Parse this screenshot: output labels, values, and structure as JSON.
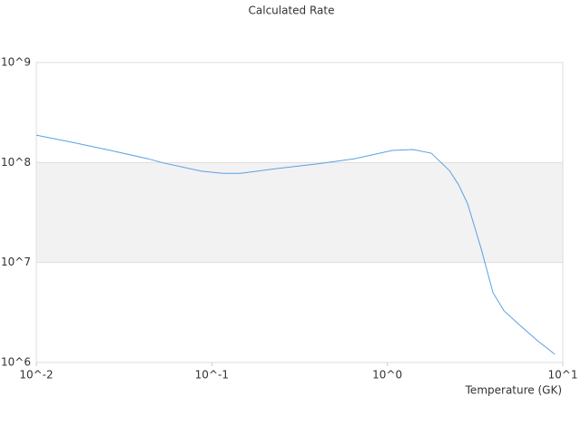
{
  "chart_data": {
    "type": "line",
    "title": "Calculated Rate",
    "x_label": "Temperature (GK)",
    "x": [
      0.01,
      0.0161,
      0.0265,
      0.0433,
      0.053,
      0.0874,
      0.115,
      0.146,
      0.235,
      0.402,
      0.647,
      1.067,
      1.4,
      1.78,
      2.26,
      2.55,
      2.87,
      3.43,
      4.0,
      4.62,
      5.86,
      7.18,
      9.0
    ],
    "series": [
      {
        "color": "#5aa0e6",
        "values": [
          188000000,
          159000000,
          132000000,
          109000000,
          99000000,
          82000000,
          78000000,
          78000000,
          87000000,
          97000000,
          109000000,
          132000000,
          135000000,
          124000000,
          83000000,
          59700000,
          38500000,
          13600000,
          4990000,
          3290000,
          2250000,
          1650000,
          1210000
        ]
      }
    ],
    "xlim": [
      0.01,
      10
    ],
    "ylim": [
      1000000,
      1000000000
    ],
    "xscale": "log",
    "yscale": "log",
    "xticks": [
      {
        "value": 0.01,
        "label": "10^-2"
      },
      {
        "value": 0.1,
        "label": "10^-1"
      },
      {
        "value": 1,
        "label": "10^0"
      },
      {
        "value": 10,
        "label": "10^1"
      }
    ],
    "yticks": [
      {
        "value": 1000000,
        "label": "10^6"
      },
      {
        "value": 10000000,
        "label": "10^7"
      },
      {
        "value": 100000000,
        "label": "10^8"
      },
      {
        "value": 1000000000,
        "label": "10^9"
      }
    ],
    "grid": true,
    "alternate_band_color": "#f2f2f2"
  }
}
